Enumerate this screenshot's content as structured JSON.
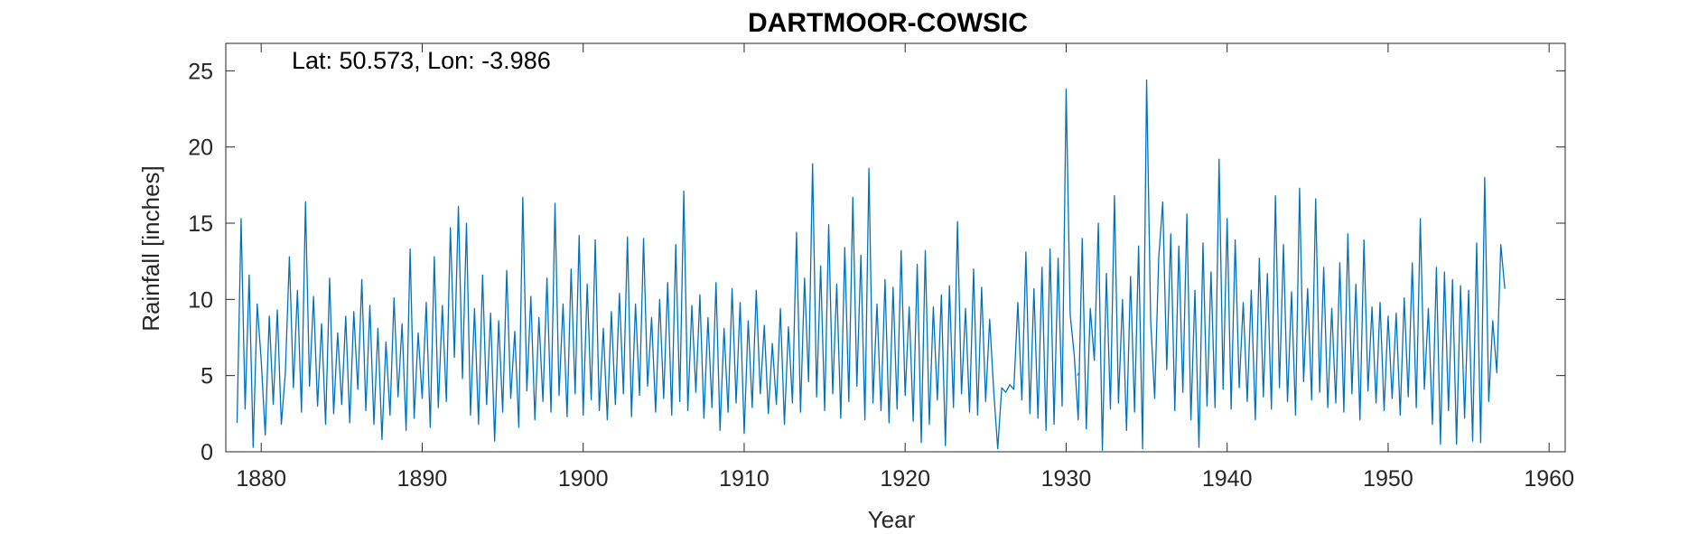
{
  "chart_data": {
    "type": "line",
    "title": "DARTMOOR-COWSIC",
    "xlabel": "Year",
    "ylabel": "Rainfall [inches]",
    "annotation": "Lat: 50.573, Lon: -3.986",
    "xlim": [
      1877.8,
      1961.0
    ],
    "ylim": [
      0,
      26.8
    ],
    "xticks": [
      1880,
      1890,
      1900,
      1910,
      1920,
      1930,
      1940,
      1950,
      1960
    ],
    "yticks": [
      0,
      5,
      10,
      15,
      20,
      25
    ],
    "grid": false,
    "legend": false,
    "series_color": "#0072BD",
    "highlight_color": "#D95319",
    "series": [
      {
        "x_start": 1878.5,
        "x_step": 0.25,
        "values": [
          1.9,
          15.3,
          2.8,
          11.6,
          0.3,
          9.7,
          6.0,
          1.1,
          8.9,
          3.1,
          9.3,
          1.8,
          5.2,
          12.8,
          4.2,
          10.6,
          2.6,
          16.4,
          4.3,
          10.2,
          3.0,
          8.4,
          1.8,
          11.4,
          2.5,
          7.8,
          3.1,
          8.9,
          1.9,
          9.2,
          4.1,
          11.3,
          2.7,
          9.6,
          1.8,
          8.1,
          0.8,
          7.2,
          2.4,
          10.1,
          3.6,
          8.4,
          1.4,
          13.3,
          2.2,
          7.8,
          3.5,
          9.8,
          1.6,
          12.8,
          2.9,
          9.6,
          3.3,
          14.7,
          6.2,
          16.1,
          4.8,
          15.0,
          2.4,
          9.4,
          1.8,
          11.6,
          3.1,
          9.1,
          0.7,
          8.6,
          2.6,
          11.9,
          3.5,
          7.9,
          1.6,
          16.7,
          4.0,
          10.2,
          2.1,
          8.8,
          3.3,
          11.4,
          2.6,
          16.3,
          3.7,
          9.7,
          2.3,
          12.0,
          3.8,
          14.2,
          2.4,
          11.0,
          3.4,
          13.9,
          2.7,
          8.1,
          2.1,
          9.2,
          3.1,
          10.4,
          3.8,
          14.1,
          2.3,
          9.7,
          3.7,
          14.0,
          4.3,
          8.8,
          2.6,
          10.0,
          3.5,
          11.1,
          2.4,
          13.6,
          3.3,
          17.1,
          2.7,
          9.6,
          3.9,
          10.3,
          2.2,
          8.8,
          2.9,
          11.1,
          1.4,
          8.1,
          2.6,
          10.7,
          3.2,
          9.8,
          1.2,
          8.6,
          2.9,
          10.6,
          3.8,
          8.3,
          2.5,
          7.1,
          3.1,
          9.4,
          1.8,
          8.2,
          3.2,
          14.4,
          2.6,
          11.4,
          4.6,
          18.9,
          3.6,
          12.2,
          2.7,
          14.9,
          3.8,
          11.0,
          2.2,
          13.4,
          3.3,
          16.7,
          4.3,
          12.9,
          2.1,
          18.6,
          3.2,
          9.7,
          2.7,
          11.3,
          1.9,
          10.8,
          2.8,
          13.2,
          3.7,
          9.5,
          2.0,
          12.3,
          0.6,
          13.2,
          1.8,
          9.5,
          3.4,
          10.3,
          0.4,
          10.9,
          2.9,
          15.1,
          3.8,
          9.4,
          2.6,
          12.0,
          2.4,
          10.8,
          3.3,
          8.7,
          4.0,
          0.2,
          4.2,
          3.9,
          4.4,
          4.1,
          9.8,
          3.4,
          13.1,
          2.5,
          10.7,
          2.2,
          12.1,
          1.4,
          13.3,
          1.8,
          12.7,
          3.0,
          23.8,
          9.0,
          6.4,
          2.1,
          14.0,
          1.5,
          9.4,
          6.0,
          15.0,
          0.1,
          11.7,
          2.8,
          16.8,
          3.2,
          10.0,
          1.4,
          11.5,
          2.6,
          13.5,
          0.2,
          24.4,
          8.6,
          3.5,
          12.7,
          16.4,
          5.4,
          14.3,
          2.7,
          13.5,
          3.9,
          15.6,
          2.1,
          10.6,
          0.3,
          13.7,
          3.0,
          11.8,
          2.9,
          19.2,
          4.1,
          15.3,
          2.8,
          13.9,
          4.2,
          9.8,
          3.3,
          10.6,
          2.1,
          12.7,
          3.6,
          11.7,
          2.8,
          16.8,
          4.2,
          13.6,
          3.3,
          10.5,
          2.4,
          17.3,
          4.6,
          10.7,
          3.4,
          16.6,
          3.9,
          12.1,
          2.9,
          9.4,
          3.2,
          12.4,
          2.6,
          14.3,
          3.8,
          11.0,
          2.1,
          13.9,
          4.0,
          9.5,
          3.2,
          9.8,
          2.7,
          8.9,
          3.5,
          9.1,
          2.4,
          10.1,
          3.6,
          12.4,
          2.9,
          15.3,
          4.1,
          9.4,
          1.8,
          12.1,
          0.5,
          11.8,
          2.7,
          11.3,
          0.5,
          10.9,
          2.2,
          10.6,
          0.7,
          13.7,
          0.6,
          18.0,
          3.3,
          8.6,
          5.2,
          13.6,
          10.7
        ]
      }
    ],
    "note_marker": {
      "x": 1930.7,
      "y": 5.0
    }
  }
}
